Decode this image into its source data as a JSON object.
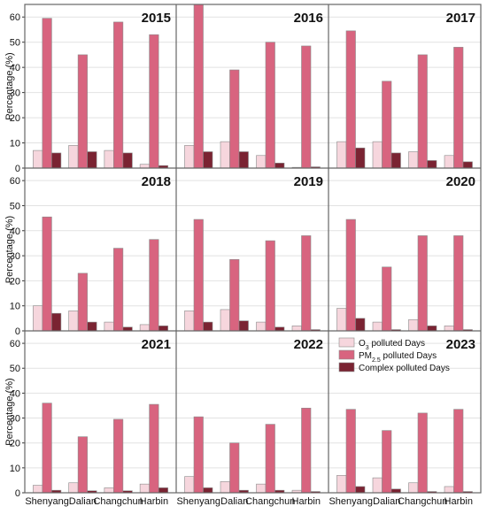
{
  "colors": {
    "o3": "#f6d6dd",
    "pm25": "#d8647f",
    "complex": "#7a2332",
    "grid": "#e2e2e2",
    "frame": "#666666"
  },
  "chart_data": {
    "type": "bar",
    "categories": [
      "Shenyang",
      "Dalian",
      "Changchun",
      "Harbin"
    ],
    "ylabel": "Percentage (%)",
    "legend": {
      "position": "top-right of 2023 panel",
      "entries": [
        {
          "key": "o3",
          "main": "O",
          "sub": "3",
          "rest": " polluted Days"
        },
        {
          "key": "pm25",
          "main": "PM",
          "sub": "2.5",
          "rest": " polluted Days"
        },
        {
          "key": "complex",
          "main": "Complex polluted Days",
          "sub": "",
          "rest": ""
        }
      ]
    },
    "rows": [
      {
        "ylim": [
          0,
          65
        ],
        "yticks": [
          0,
          10,
          20,
          30,
          40,
          50,
          60
        ]
      },
      {
        "ylim": [
          0,
          65
        ],
        "yticks": [
          0,
          10,
          20,
          30,
          40,
          50,
          60
        ]
      },
      {
        "ylim": [
          0,
          65
        ],
        "yticks": [
          0,
          10,
          20,
          30,
          40,
          50,
          60
        ]
      }
    ],
    "panels": [
      {
        "year": "2015",
        "o3": [
          7,
          9,
          7,
          1.5
        ],
        "pm25": [
          59.5,
          45,
          58,
          53
        ],
        "complex": [
          6,
          6.5,
          6,
          1
        ]
      },
      {
        "year": "2016",
        "o3": [
          9,
          10.5,
          5,
          0.3
        ],
        "pm25": [
          65,
          39,
          50,
          48.5
        ],
        "complex": [
          6.5,
          6.5,
          2,
          0.5
        ]
      },
      {
        "year": "2017",
        "o3": [
          10.5,
          10.5,
          6.5,
          5
        ],
        "pm25": [
          54.5,
          34.5,
          45,
          48
        ],
        "complex": [
          8,
          6,
          3,
          2.5
        ]
      },
      {
        "year": "2018",
        "o3": [
          10,
          8,
          3.5,
          2.5
        ],
        "pm25": [
          45.5,
          23,
          33,
          36.5
        ],
        "complex": [
          7,
          3.5,
          1.5,
          2
        ]
      },
      {
        "year": "2019",
        "o3": [
          8,
          8.5,
          3.5,
          2
        ],
        "pm25": [
          44.5,
          28.5,
          36,
          38
        ],
        "complex": [
          3.5,
          4,
          1.5,
          0.5
        ]
      },
      {
        "year": "2020",
        "o3": [
          9,
          3.5,
          4.5,
          2
        ],
        "pm25": [
          44.5,
          25.5,
          38,
          38
        ],
        "complex": [
          5,
          0.5,
          2,
          0.5
        ]
      },
      {
        "year": "2021",
        "o3": [
          3,
          4,
          2,
          3.5
        ],
        "pm25": [
          36,
          22.5,
          29.5,
          35.5
        ],
        "complex": [
          1,
          0.8,
          0.8,
          2
        ]
      },
      {
        "year": "2022",
        "o3": [
          6.5,
          4.5,
          3.5,
          1
        ],
        "pm25": [
          30.5,
          20,
          27.5,
          34
        ],
        "complex": [
          2,
          1,
          1,
          0.5
        ]
      },
      {
        "year": "2023",
        "o3": [
          7,
          6,
          4,
          2.5
        ],
        "pm25": [
          33.5,
          25,
          32,
          33.5
        ],
        "complex": [
          2.5,
          1.5,
          0.5,
          0.5
        ]
      }
    ]
  }
}
